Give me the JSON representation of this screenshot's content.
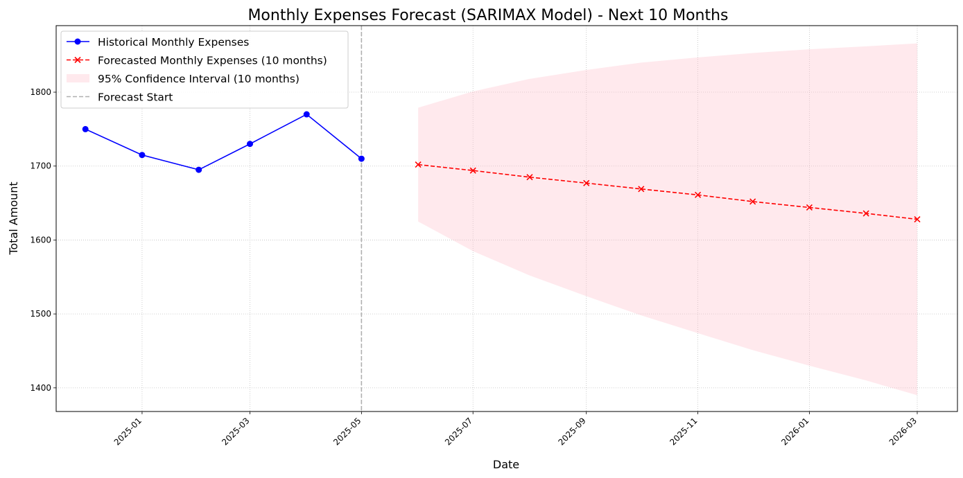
{
  "chart_data": {
    "type": "line",
    "title": "Monthly Expenses Forecast (SARIMAX Model) - Next 10 Months",
    "xlabel": "Date",
    "ylabel": "Total Amount",
    "xlim": [
      "2024-11-15",
      "2026-03-23"
    ],
    "ylim": [
      1368,
      1890
    ],
    "x_ticks": [
      "2025-01",
      "2025-03",
      "2025-05",
      "2025-07",
      "2025-09",
      "2025-11",
      "2026-01",
      "2026-03"
    ],
    "y_ticks": [
      1400,
      1500,
      1600,
      1700,
      1800
    ],
    "grid": true,
    "legend_position": "top-left",
    "series": [
      {
        "name": "Historical Monthly Expenses",
        "color": "#0000ff",
        "line_style": "solid",
        "marker": "circle",
        "x": [
          "2024-12-01",
          "2025-01-01",
          "2025-02-01",
          "2025-03-01",
          "2025-04-01",
          "2025-05-01"
        ],
        "values": [
          1750,
          1715,
          1695,
          1730,
          1770,
          1710
        ]
      },
      {
        "name": "Forecasted Monthly Expenses (10 months)",
        "color": "#ff0000",
        "line_style": "dashed",
        "marker": "x",
        "x": [
          "2025-06-01",
          "2025-07-01",
          "2025-08-01",
          "2025-09-01",
          "2025-10-01",
          "2025-11-01",
          "2025-12-01",
          "2026-01-01",
          "2026-02-01",
          "2026-03-01"
        ],
        "values": [
          1702,
          1694,
          1685,
          1677,
          1669,
          1661,
          1652,
          1644,
          1636,
          1628
        ]
      }
    ],
    "confidence_interval": {
      "name": "95% Confidence Interval (10 months)",
      "color": "#ffc0cb",
      "x": [
        "2025-06-01",
        "2025-07-01",
        "2025-08-01",
        "2025-09-01",
        "2025-10-01",
        "2025-11-01",
        "2025-12-01",
        "2026-01-01",
        "2026-02-01",
        "2026-03-01"
      ],
      "lower": [
        1625,
        1585,
        1552,
        1524,
        1498,
        1474,
        1451,
        1430,
        1410,
        1390
      ],
      "upper": [
        1779,
        1801,
        1818,
        1830,
        1840,
        1847,
        1853,
        1858,
        1862,
        1866
      ]
    },
    "vertical_line": {
      "name": "Forecast Start",
      "x": "2025-05-01",
      "color": "#b0b0b0",
      "line_style": "dashed"
    }
  }
}
